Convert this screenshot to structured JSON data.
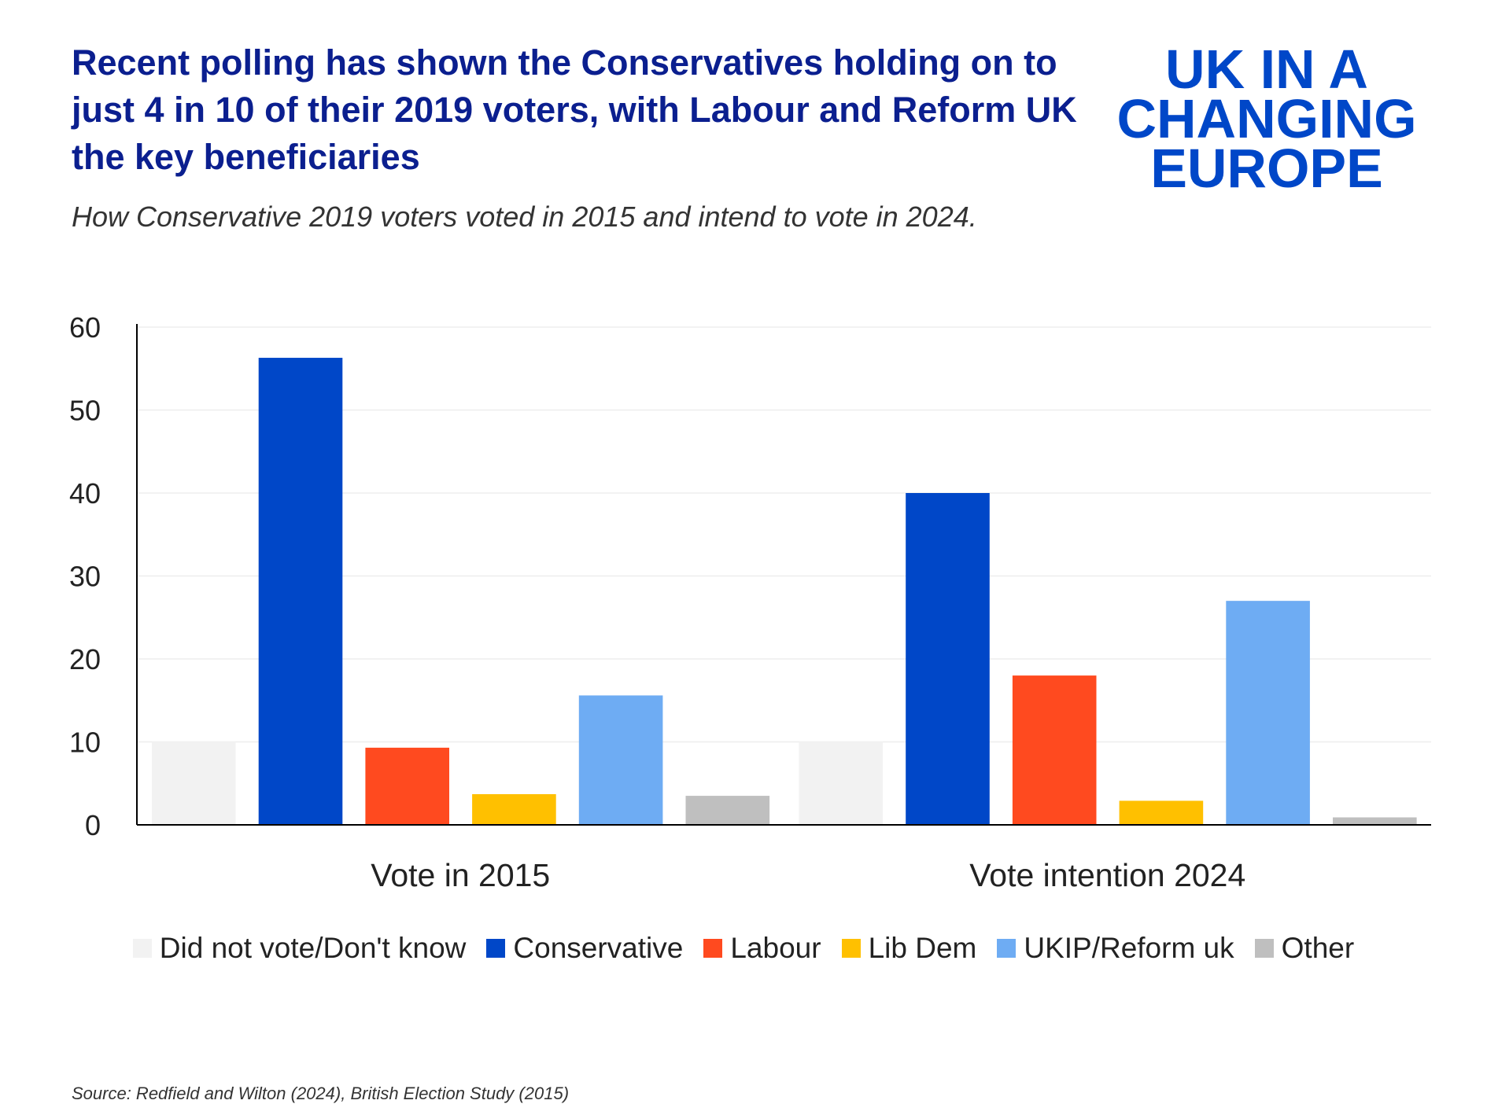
{
  "title": "Recent polling has shown the Conservatives holding on to just 4 in 10 of their 2019 voters, with Labour and Reform UK the key beneficiaries",
  "subtitle": "How Conservative 2019 voters voted in 2015 and intend to vote in 2024.",
  "source": "Source: Redfield and Wilton (2024), British Election Study (2015)",
  "logo": {
    "line1": "UK IN A",
    "line2": "CHANGING",
    "line3": "EUROPE",
    "color": "#0047c8",
    "accent": "#ff4b1f"
  },
  "chart_data": {
    "type": "bar",
    "categories": [
      "Vote in 2015",
      "Vote intention 2024"
    ],
    "series": [
      {
        "name": "Did not vote/Don't know",
        "color": "#f2f2f2",
        "values": [
          10,
          10
        ]
      },
      {
        "name": "Conservative",
        "color": "#0047c8",
        "values": [
          56.3,
          40
        ]
      },
      {
        "name": "Labour",
        "color": "#ff4a1f",
        "values": [
          9.3,
          18
        ]
      },
      {
        "name": "Lib Dem",
        "color": "#ffc000",
        "values": [
          3.7,
          2.9
        ]
      },
      {
        "name": "UKIP/Reform uk",
        "color": "#6eacf3",
        "values": [
          15.6,
          27
        ]
      },
      {
        "name": "Other",
        "color": "#bfbfbf",
        "values": [
          3.5,
          0.9
        ]
      }
    ],
    "yticks": [
      "0",
      "10",
      "20",
      "30",
      "40",
      "50",
      "60"
    ],
    "ylim": [
      0,
      60
    ],
    "grid": true,
    "legend_position": "bottom"
  }
}
